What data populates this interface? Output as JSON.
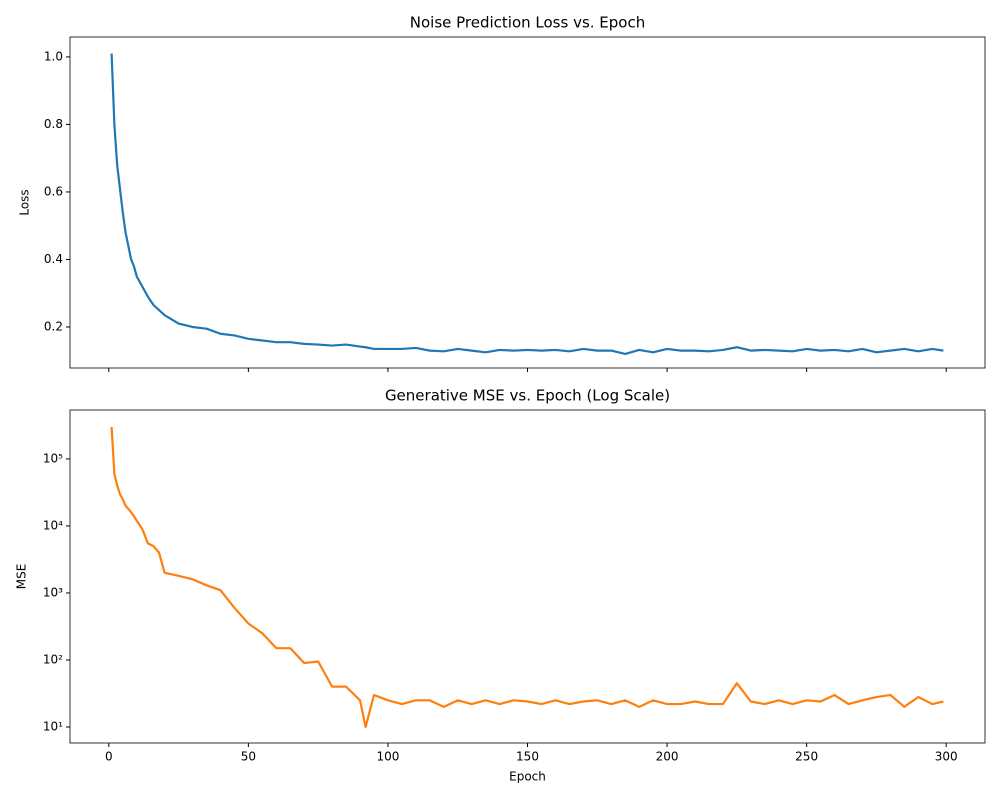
{
  "chart_data": [
    {
      "type": "line",
      "title": "Noise Prediction Loss vs. Epoch",
      "ylabel": "Loss",
      "x": [
        1,
        2,
        3,
        4,
        5,
        6,
        7,
        8,
        9,
        10,
        12,
        14,
        16,
        18,
        20,
        25,
        30,
        35,
        40,
        45,
        50,
        55,
        60,
        65,
        70,
        75,
        80,
        85,
        90,
        92,
        95,
        100,
        105,
        110,
        115,
        120,
        125,
        130,
        135,
        140,
        145,
        150,
        155,
        160,
        165,
        170,
        175,
        180,
        185,
        190,
        195,
        200,
        205,
        210,
        215,
        220,
        225,
        230,
        235,
        240,
        245,
        250,
        255,
        260,
        265,
        270,
        275,
        280,
        285,
        290,
        295,
        299
      ],
      "series": [
        {
          "color": "#1f77b4",
          "values": [
            1.01,
            0.8,
            0.68,
            0.61,
            0.54,
            0.48,
            0.44,
            0.4,
            0.38,
            0.35,
            0.32,
            0.29,
            0.265,
            0.25,
            0.235,
            0.21,
            0.2,
            0.195,
            0.18,
            0.175,
            0.165,
            0.16,
            0.155,
            0.155,
            0.15,
            0.148,
            0.145,
            0.148,
            0.142,
            0.14,
            0.135,
            0.135,
            0.135,
            0.138,
            0.13,
            0.128,
            0.135,
            0.13,
            0.125,
            0.132,
            0.13,
            0.132,
            0.13,
            0.132,
            0.128,
            0.135,
            0.13,
            0.13,
            0.12,
            0.132,
            0.125,
            0.135,
            0.13,
            0.13,
            0.128,
            0.132,
            0.14,
            0.13,
            0.132,
            0.13,
            0.128,
            0.135,
            0.13,
            0.132,
            0.128,
            0.135,
            0.125,
            0.13,
            0.135,
            0.128,
            0.135,
            0.13
          ]
        }
      ],
      "xlim": [
        -13.9,
        313.9
      ],
      "xticks": [
        0,
        50,
        100,
        150,
        200,
        250,
        300
      ],
      "ylim": [
        0.0785,
        1.059
      ],
      "yticks": [
        {
          "value": 0.2,
          "label": "0.2"
        },
        {
          "value": 0.4,
          "label": "0.4"
        },
        {
          "value": 0.6,
          "label": "0.6"
        },
        {
          "value": 0.8,
          "label": "0.8"
        },
        {
          "value": 1.0,
          "label": "1.0"
        }
      ]
    },
    {
      "type": "line",
      "title": "Generative MSE vs. Epoch (Log Scale)",
      "ylabel": "MSE",
      "xlabel": "Epoch",
      "log_y": true,
      "x": [
        1,
        2,
        3,
        4,
        5,
        6,
        7,
        8,
        9,
        10,
        12,
        14,
        16,
        18,
        20,
        25,
        30,
        35,
        40,
        45,
        50,
        55,
        60,
        65,
        70,
        75,
        80,
        85,
        90,
        92,
        95,
        100,
        105,
        110,
        115,
        120,
        125,
        130,
        135,
        140,
        145,
        150,
        155,
        160,
        165,
        170,
        175,
        180,
        185,
        190,
        195,
        200,
        205,
        210,
        215,
        220,
        225,
        230,
        235,
        240,
        245,
        250,
        255,
        260,
        265,
        270,
        275,
        280,
        285,
        290,
        295,
        299
      ],
      "series": [
        {
          "color": "#ff7f0e",
          "values": [
            300000,
            60000,
            40000,
            30000,
            25000,
            20000,
            18000,
            16000,
            14000,
            12000,
            9000,
            5500,
            5000,
            4000,
            2000,
            1800,
            1600,
            1300,
            1100,
            600,
            350,
            250,
            150,
            150,
            90,
            95,
            40,
            40,
            25,
            10,
            30,
            25,
            22,
            25,
            25,
            20,
            25,
            22,
            25,
            22,
            25,
            24,
            22,
            25,
            22,
            24,
            25,
            22,
            25,
            20,
            25,
            22,
            22,
            24,
            22,
            22,
            45,
            24,
            22,
            25,
            22,
            25,
            24,
            30,
            22,
            25,
            28,
            30,
            20,
            28,
            22,
            24
          ]
        }
      ],
      "xlim": [
        -13.9,
        313.9
      ],
      "xticks": [
        0,
        50,
        100,
        150,
        200,
        250,
        300
      ],
      "ylim": [
        5.77,
        537000
      ],
      "yticks": [
        {
          "value": 10,
          "label": "10¹"
        },
        {
          "value": 100,
          "label": "10²"
        },
        {
          "value": 1000,
          "label": "10³"
        },
        {
          "value": 10000,
          "label": "10⁴"
        },
        {
          "value": 100000,
          "label": "10⁵"
        }
      ]
    }
  ]
}
